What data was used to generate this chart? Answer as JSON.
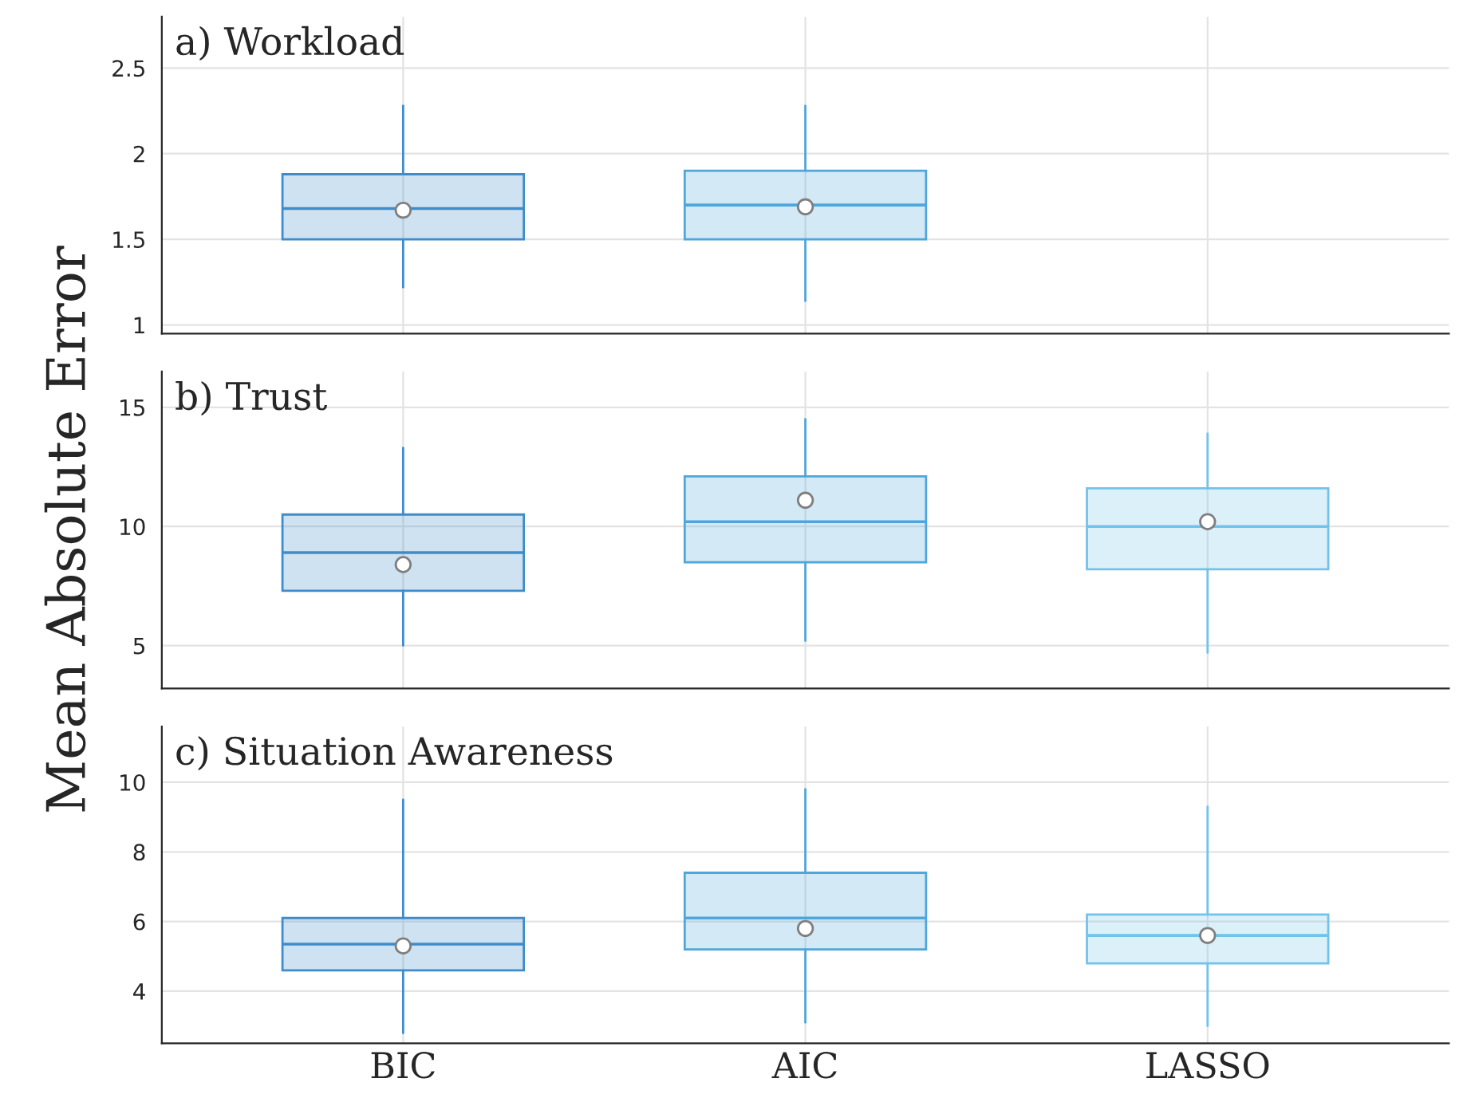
{
  "chart_data": [
    {
      "type": "box",
      "title": "a) Workload",
      "colors": [
        "#3f8ccb",
        "#4ea6dc",
        "#72c3ea"
      ],
      "ylim": [
        0.95,
        2.8
      ],
      "yticks": [
        1,
        1.5,
        2,
        2.5
      ],
      "grid": true,
      "tick_labels": "y",
      "boxes": [
        {
          "low": 1.22,
          "q1": 1.5,
          "median": 1.67,
          "q3": 1.88,
          "high": 2.28,
          "mean": 1.68
        },
        {
          "low": 1.14,
          "q1": 1.5,
          "median": 1.69,
          "q3": 1.9,
          "high": 2.28,
          "mean": 1.7
        },
        null
      ]
    },
    {
      "type": "box",
      "title": "b) Trust",
      "ylabel": "Mean Absolute Error",
      "colors": [
        "#3f8ccb",
        "#4ea6dc",
        "#72c3ea"
      ],
      "ylim": [
        3.2,
        16.5
      ],
      "yticks": [
        5,
        10,
        15
      ],
      "grid": true,
      "tick_labels": "y",
      "boxes": [
        {
          "low": 5.0,
          "q1": 7.3,
          "median": 8.4,
          "q3": 10.5,
          "high": 13.3,
          "mean": 8.9
        },
        {
          "low": 5.2,
          "q1": 8.5,
          "median": 11.1,
          "q3": 12.1,
          "high": 14.5,
          "mean": 10.2
        },
        {
          "low": 4.7,
          "q1": 8.2,
          "median": 10.2,
          "q3": 11.6,
          "high": 13.9,
          "mean": 10.0
        }
      ]
    },
    {
      "type": "box",
      "title": "c) Situation Awareness",
      "categories": [
        "BIC",
        "AIC",
        "LASSO"
      ],
      "colors": [
        "#3f8ccb",
        "#4ea6dc",
        "#72c3ea"
      ],
      "ylim": [
        2.5,
        11.6
      ],
      "yticks": [
        4,
        6,
        8,
        10
      ],
      "grid": true,
      "boxes": [
        {
          "low": 2.8,
          "q1": 4.6,
          "median": 5.3,
          "q3": 6.1,
          "high": 9.5,
          "mean": 5.35
        },
        {
          "low": 3.1,
          "q1": 5.2,
          "median": 5.8,
          "q3": 7.4,
          "high": 9.8,
          "mean": 6.1
        },
        {
          "low": 3.0,
          "q1": 4.8,
          "median": 5.6,
          "q3": 6.2,
          "high": 9.3,
          "mean": 5.6
        }
      ]
    }
  ]
}
